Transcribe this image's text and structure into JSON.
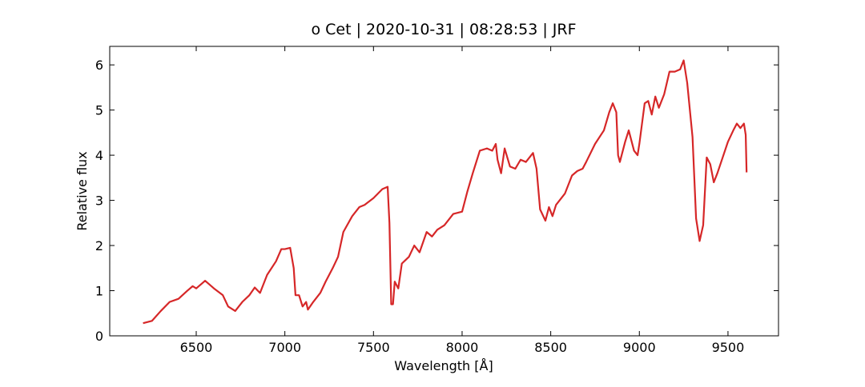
{
  "chart_data": {
    "type": "line",
    "title": "o Cet | 2020-10-31 | 08:28:53 | JRF",
    "x_label": "Wavelength [Å]",
    "y_label": "Relative flux",
    "xlim": [
      6012,
      9785
    ],
    "ylim": [
      0,
      6.41
    ],
    "xticks": [
      6500,
      7000,
      7500,
      8000,
      8500,
      9000,
      9500
    ],
    "yticks": [
      0,
      1,
      2,
      3,
      4,
      5,
      6
    ],
    "series": [
      {
        "color": "#d62728",
        "x": [
          6200,
          6250,
          6300,
          6350,
          6400,
          6450,
          6480,
          6500,
          6550,
          6600,
          6650,
          6680,
          6720,
          6760,
          6800,
          6830,
          6860,
          6900,
          6950,
          6980,
          7000,
          7030,
          7050,
          7060,
          7080,
          7100,
          7120,
          7130,
          7160,
          7200,
          7230,
          7270,
          7300,
          7330,
          7380,
          7420,
          7450,
          7500,
          7550,
          7580,
          7590,
          7600,
          7610,
          7620,
          7640,
          7660,
          7700,
          7730,
          7760,
          7800,
          7830,
          7860,
          7900,
          7950,
          8000,
          8030,
          8060,
          8100,
          8140,
          8170,
          8190,
          8200,
          8220,
          8240,
          8270,
          8300,
          8330,
          8360,
          8400,
          8420,
          8440,
          8470,
          8490,
          8510,
          8530,
          8580,
          8620,
          8650,
          8680,
          8700,
          8750,
          8800,
          8830,
          8850,
          8870,
          8880,
          8890,
          8920,
          8940,
          8970,
          8990,
          9000,
          9030,
          9050,
          9070,
          9090,
          9110,
          9140,
          9170,
          9200,
          9230,
          9250,
          9270,
          9300,
          9320,
          9340,
          9360,
          9380,
          9400,
          9420,
          9440,
          9470,
          9500,
          9530,
          9550,
          9570,
          9590,
          9600,
          9605
        ],
        "values": [
          0.28,
          0.33,
          0.55,
          0.75,
          0.82,
          1.0,
          1.1,
          1.05,
          1.22,
          1.05,
          0.9,
          0.65,
          0.55,
          0.75,
          0.9,
          1.07,
          0.95,
          1.35,
          1.65,
          1.92,
          1.92,
          1.95,
          1.5,
          0.9,
          0.9,
          0.65,
          0.75,
          0.58,
          0.75,
          0.95,
          1.2,
          1.5,
          1.75,
          2.3,
          2.65,
          2.85,
          2.9,
          3.05,
          3.25,
          3.3,
          2.5,
          0.7,
          0.7,
          1.2,
          1.05,
          1.6,
          1.75,
          2.0,
          1.85,
          2.3,
          2.2,
          2.35,
          2.45,
          2.7,
          2.75,
          3.2,
          3.6,
          4.1,
          4.15,
          4.1,
          4.25,
          3.9,
          3.6,
          4.15,
          3.75,
          3.7,
          3.9,
          3.85,
          4.05,
          3.7,
          2.8,
          2.55,
          2.85,
          2.65,
          2.9,
          3.15,
          3.55,
          3.65,
          3.7,
          3.85,
          4.25,
          4.55,
          4.95,
          5.15,
          4.95,
          4.0,
          3.85,
          4.3,
          4.55,
          4.1,
          4.0,
          4.25,
          5.15,
          5.2,
          4.9,
          5.3,
          5.05,
          5.35,
          5.85,
          5.85,
          5.9,
          6.1,
          5.6,
          4.4,
          2.6,
          2.1,
          2.45,
          3.95,
          3.8,
          3.4,
          3.6,
          3.95,
          4.3,
          4.55,
          4.7,
          4.6,
          4.7,
          4.45,
          3.62
        ]
      }
    ]
  }
}
